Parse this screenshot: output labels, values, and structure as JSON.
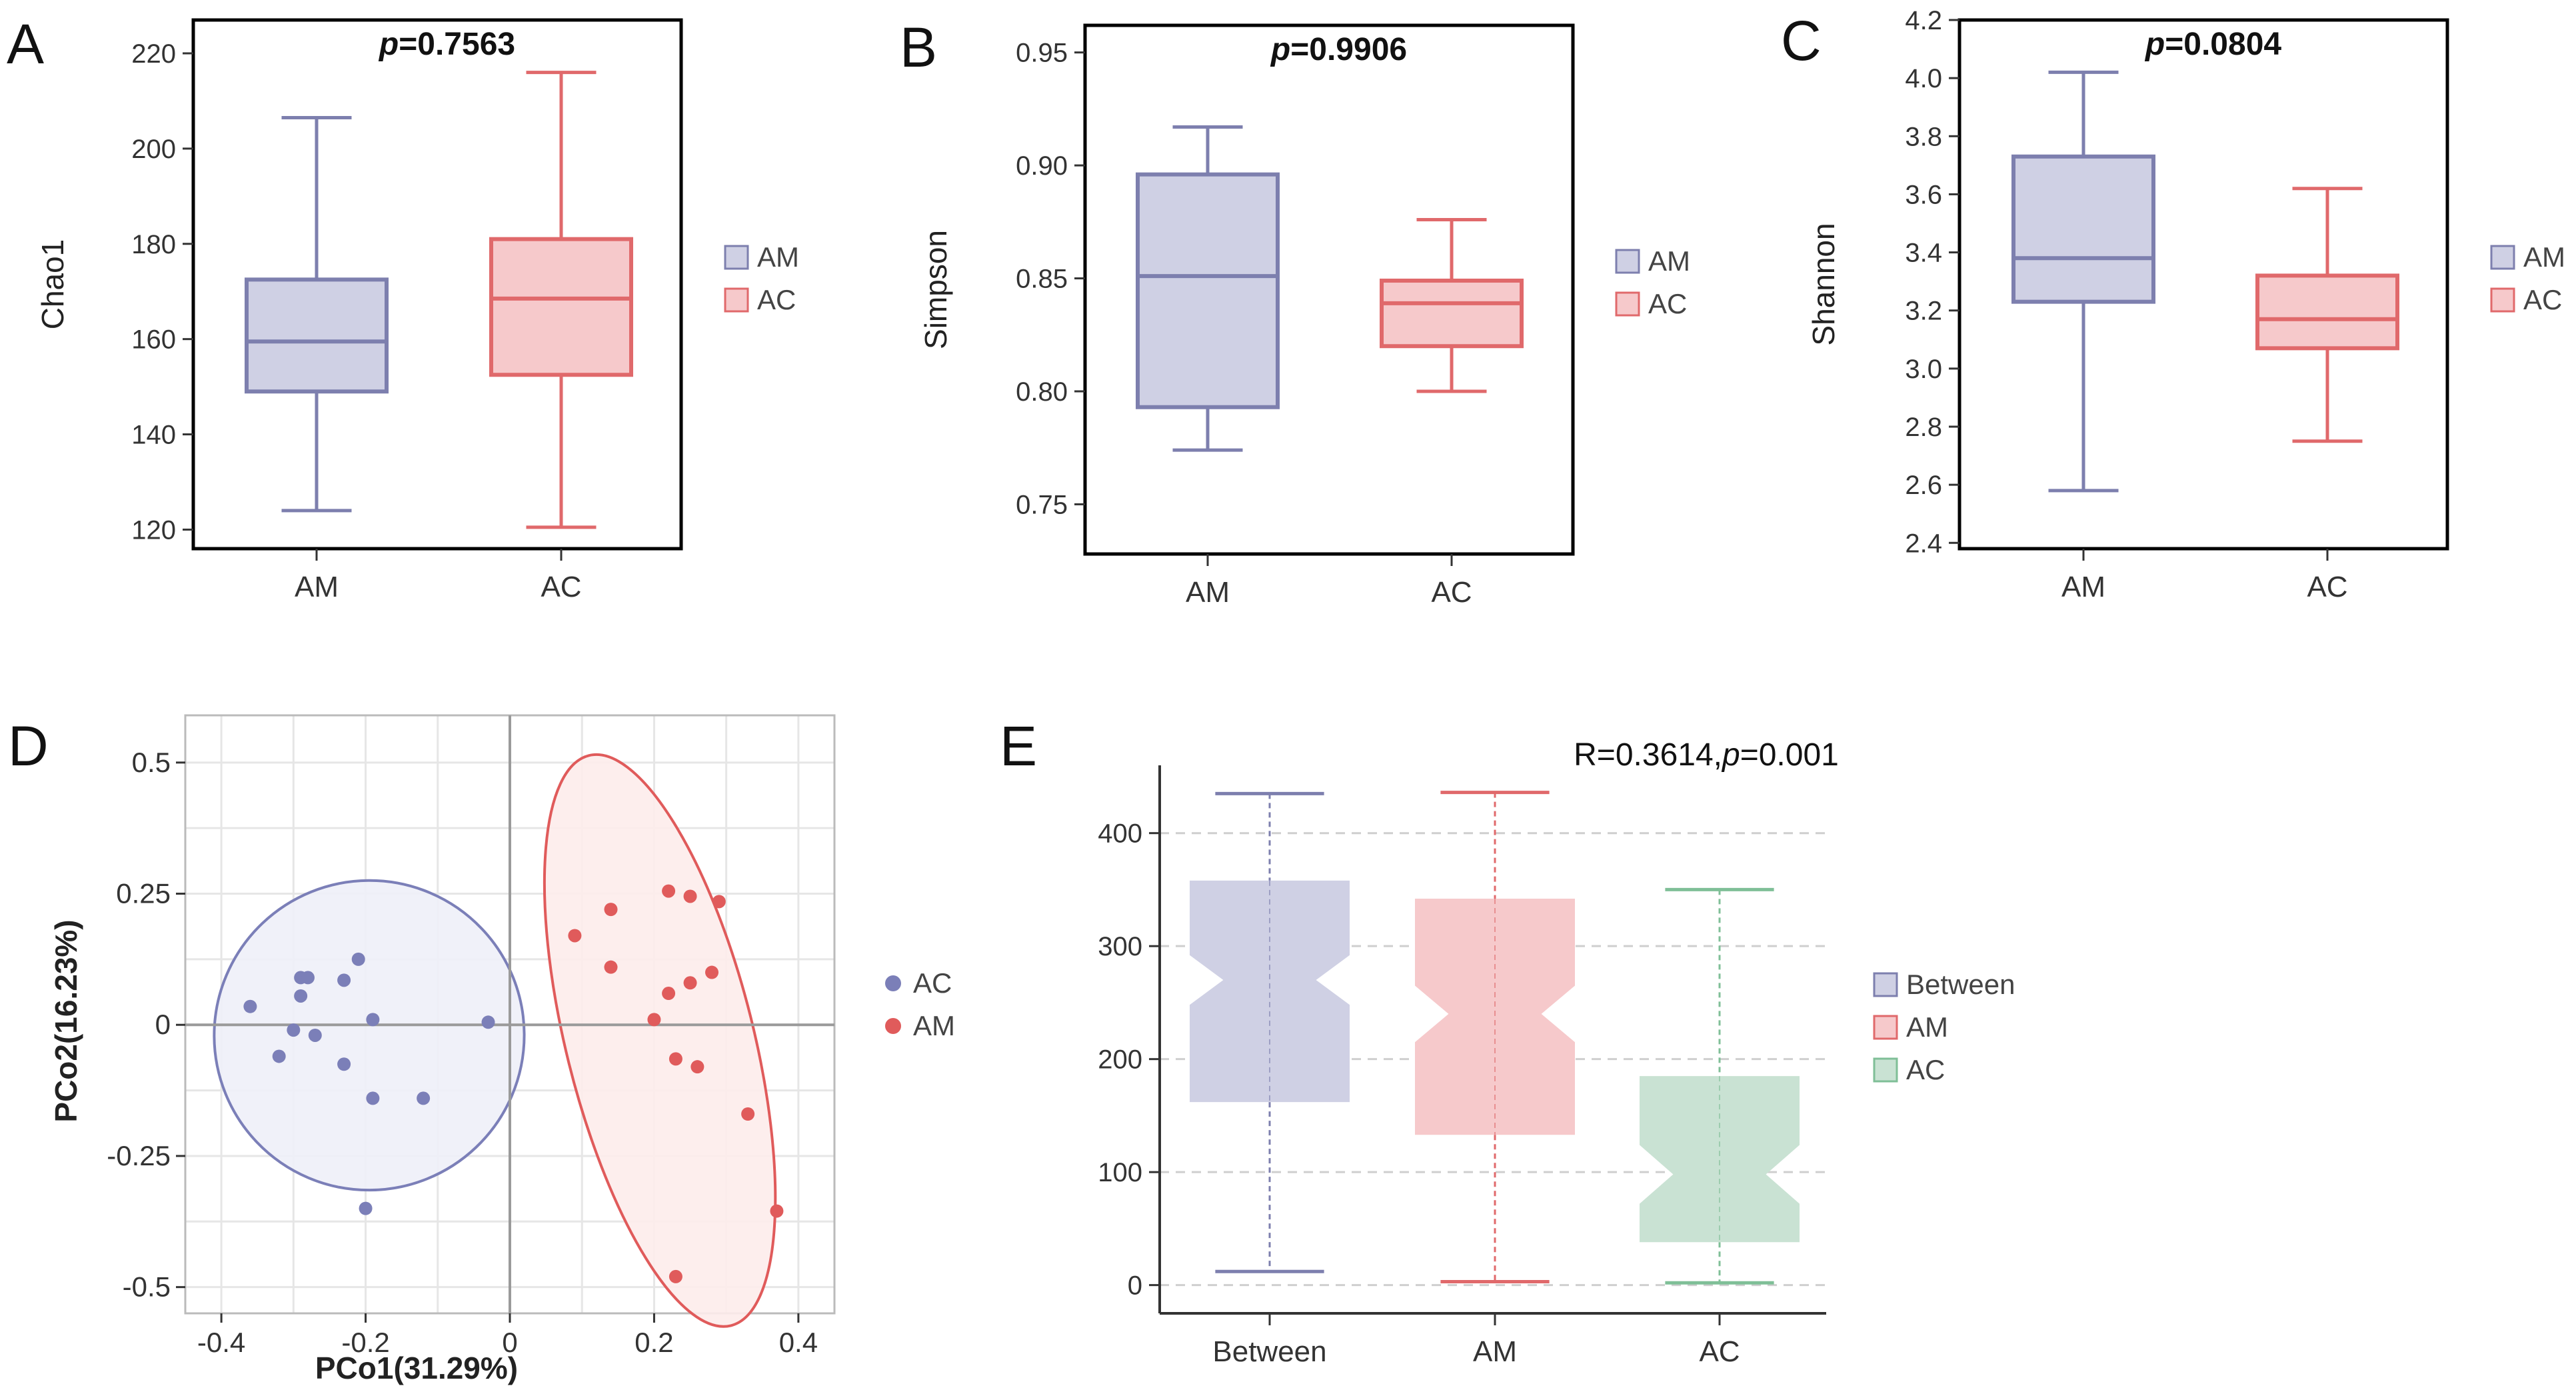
{
  "colors": {
    "am_fill": "#cfd0e4",
    "am_line": "#7d7fae",
    "ac_fill": "#f6c9cb",
    "ac_line": "#e0696b",
    "between_fill": "#cfd0e4",
    "between_line": "#7d7fae",
    "acE_fill": "#c9e2d3",
    "acE_line": "#7fbf97",
    "ac_point": "#e05b5b",
    "am_point": "#7b7fb8",
    "ac_ellipse_fill": "#fdeceb",
    "am_ellipse_fill": "#eef0f8"
  },
  "chart_data": [
    {
      "id": "A",
      "type": "box",
      "panel_label": "A",
      "ylabel": "Chao1",
      "annotation": {
        "p_symbol": "p",
        "value": "=0.7563"
      },
      "yticks": [
        120,
        140,
        160,
        180,
        200,
        220
      ],
      "ylim": [
        116,
        227
      ],
      "categories": [
        "AM",
        "AC"
      ],
      "boxes": [
        {
          "name": "AM",
          "min": 124,
          "q1": 149,
          "median": 159.5,
          "q3": 172.5,
          "max": 206.5,
          "color": "am"
        },
        {
          "name": "AC",
          "min": 120.5,
          "q1": 152.5,
          "median": 168.5,
          "q3": 181,
          "max": 216,
          "color": "ac"
        }
      ],
      "legend": [
        "AM",
        "AC"
      ]
    },
    {
      "id": "B",
      "type": "box",
      "panel_label": "B",
      "ylabel": "Simpson",
      "annotation": {
        "p_symbol": "p",
        "value": "=0.9906"
      },
      "yticks": [
        0.75,
        0.8,
        0.85,
        0.9,
        0.95
      ],
      "ytick_labels": [
        "0.75",
        "0.80",
        "0.85",
        "0.90",
        "0.95"
      ],
      "ylim": [
        0.728,
        0.962
      ],
      "categories": [
        "AM",
        "AC"
      ],
      "boxes": [
        {
          "name": "AM",
          "min": 0.774,
          "q1": 0.793,
          "median": 0.851,
          "q3": 0.896,
          "max": 0.917,
          "color": "am"
        },
        {
          "name": "AC",
          "min": 0.8,
          "q1": 0.82,
          "median": 0.839,
          "q3": 0.849,
          "max": 0.876,
          "color": "ac"
        }
      ],
      "legend": [
        "AM",
        "AC"
      ]
    },
    {
      "id": "C",
      "type": "box",
      "panel_label": "C",
      "ylabel": "Shannon",
      "annotation": {
        "p_symbol": "p",
        "value": "=0.0804"
      },
      "yticks": [
        2.4,
        2.6,
        2.8,
        3.0,
        3.2,
        3.4,
        3.6,
        3.8,
        4.0,
        4.2
      ],
      "ytick_labels": [
        "2.4",
        "2.6",
        "2.8",
        "3.0",
        "3.2",
        "3.4",
        "3.6",
        "3.8",
        "4.0",
        "4.2"
      ],
      "ylim": [
        2.38,
        4.2
      ],
      "categories": [
        "AM",
        "AC"
      ],
      "boxes": [
        {
          "name": "AM",
          "min": 2.58,
          "q1": 3.23,
          "median": 3.38,
          "q3": 3.73,
          "max": 4.02,
          "color": "am"
        },
        {
          "name": "AC",
          "min": 2.75,
          "q1": 3.07,
          "median": 3.17,
          "q3": 3.32,
          "max": 3.62,
          "color": "ac"
        }
      ],
      "legend": [
        "AM",
        "AC"
      ]
    },
    {
      "id": "D",
      "type": "scatter",
      "panel_label": "D",
      "xlabel": "PCo1(31.29%)",
      "ylabel": "PCo2(16.23%)",
      "xlim": [
        -0.45,
        0.45
      ],
      "ylim": [
        -0.55,
        0.59
      ],
      "xticks": [
        -0.4,
        -0.2,
        0,
        0.2,
        0.4
      ],
      "xtick_labels": [
        "-0.4",
        "-0.2",
        "0",
        "0.2",
        "0.4"
      ],
      "yticks": [
        -0.5,
        -0.25,
        0,
        0.25,
        0.5
      ],
      "ytick_labels": [
        "-0.5",
        "-0.25",
        "0",
        "0.25",
        "0.5"
      ],
      "series": [
        {
          "name": "AC",
          "color": "am",
          "points": [
            [
              -0.36,
              0.035
            ],
            [
              -0.29,
              0.09
            ],
            [
              -0.28,
              0.09
            ],
            [
              -0.29,
              0.055
            ],
            [
              -0.23,
              0.085
            ],
            [
              -0.21,
              0.125
            ],
            [
              -0.3,
              -0.01
            ],
            [
              -0.27,
              -0.02
            ],
            [
              -0.32,
              -0.06
            ],
            [
              -0.23,
              -0.075
            ],
            [
              -0.19,
              0.01
            ],
            [
              -0.19,
              -0.14
            ],
            [
              -0.12,
              -0.14
            ],
            [
              -0.03,
              0.005
            ],
            [
              -0.2,
              -0.35
            ]
          ],
          "ellipse": {
            "cx": -0.195,
            "cy": -0.02,
            "rx": 0.215,
            "ry": 0.295,
            "angle_deg": -22
          }
        },
        {
          "name": "AM",
          "color": "ac",
          "points": [
            [
              0.09,
              0.17
            ],
            [
              0.14,
              0.22
            ],
            [
              0.14,
              0.11
            ],
            [
              0.22,
              0.255
            ],
            [
              0.25,
              0.245
            ],
            [
              0.29,
              0.235
            ],
            [
              0.22,
              0.06
            ],
            [
              0.25,
              0.08
            ],
            [
              0.28,
              0.1
            ],
            [
              0.2,
              0.01
            ],
            [
              0.23,
              -0.065
            ],
            [
              0.26,
              -0.08
            ],
            [
              0.33,
              -0.17
            ],
            [
              0.37,
              -0.355
            ],
            [
              0.23,
              -0.48
            ]
          ],
          "ellipse": {
            "cx": 0.208,
            "cy": -0.03,
            "rx": 0.13,
            "ry": 0.56,
            "angle_deg": -14
          }
        }
      ],
      "legend": [
        "AC",
        "AM"
      ]
    },
    {
      "id": "E",
      "type": "box",
      "notched": true,
      "panel_label": "E",
      "annotation": {
        "r_text": "R=0.3614,",
        "p_symbol": "p",
        "value": "=0.001"
      },
      "yticks": [
        0,
        100,
        200,
        300,
        400
      ],
      "ylim": [
        -25,
        460
      ],
      "grid": "dashed",
      "categories": [
        "Between",
        "AM",
        "AC"
      ],
      "boxes": [
        {
          "name": "Between",
          "min": 12,
          "q1": 162,
          "median": 270,
          "q3": 358,
          "max": 435,
          "notch_lo": 248,
          "notch_hi": 292,
          "color": "between"
        },
        {
          "name": "AM",
          "min": 3,
          "q1": 133,
          "median": 240,
          "q3": 342,
          "max": 436,
          "notch_lo": 215,
          "notch_hi": 265,
          "color": "ac"
        },
        {
          "name": "AC",
          "min": 2,
          "q1": 38,
          "median": 98,
          "q3": 185,
          "max": 350,
          "notch_lo": 72,
          "notch_hi": 124,
          "color": "acE"
        }
      ],
      "legend": [
        "Between",
        "AM",
        "AC"
      ]
    }
  ]
}
